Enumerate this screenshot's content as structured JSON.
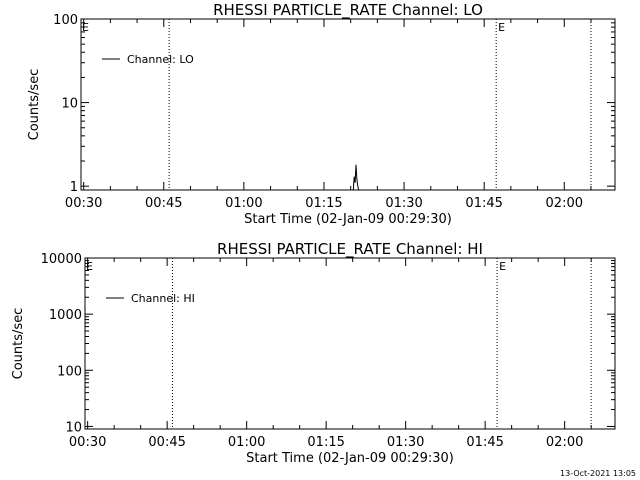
{
  "timestamp": "13-Oct-2021 13:05",
  "chart_data": [
    {
      "type": "line",
      "title": "RHESSI PARTICLE_RATE Channel: LO",
      "ylabel": "Counts/sec",
      "xlabel": "Start Time (02-Jan-09 00:29:30)",
      "yscale": "log",
      "ylim": [
        0.9,
        100
      ],
      "y_ticks": [
        1,
        10,
        100
      ],
      "xlim": [
        "00:29:30",
        "02:09:30"
      ],
      "x_ticks": [
        "00:30",
        "00:45",
        "01:00",
        "01:15",
        "01:30",
        "01:45",
        "02:00"
      ],
      "legend": {
        "position": "top-left",
        "entries": [
          "Channel: LO"
        ]
      },
      "series": [
        {
          "name": "Channel: LO",
          "x": [
            "01:20:30",
            "01:20:40",
            "01:20:50",
            "01:21:00",
            "01:21:10",
            "01:21:20",
            "01:21:30"
          ],
          "y": [
            0.9,
            1.3,
            1.1,
            1.8,
            1.2,
            1.0,
            0.9
          ]
        }
      ],
      "markers": [
        {
          "time": "00:46:00",
          "label": ""
        },
        {
          "time": "01:47:15",
          "label": "E"
        },
        {
          "time": "02:05:00",
          "label": ""
        }
      ],
      "corner_marker": "E"
    },
    {
      "type": "line",
      "title": "RHESSI PARTICLE_RATE Channel: HI",
      "ylabel": "Counts/sec",
      "xlabel": "Start Time (02-Jan-09 00:29:30)",
      "yscale": "log",
      "ylim": [
        9,
        10000
      ],
      "y_ticks": [
        10,
        100,
        1000,
        10000
      ],
      "xlim": [
        "00:29:30",
        "02:09:30"
      ],
      "x_ticks": [
        "00:30",
        "00:45",
        "01:00",
        "01:15",
        "01:30",
        "01:45",
        "02:00"
      ],
      "legend": {
        "position": "top-left",
        "entries": [
          "Channel: HI"
        ]
      },
      "series": [
        {
          "name": "Channel: HI",
          "x": [],
          "y": []
        }
      ],
      "markers": [
        {
          "time": "00:46:00",
          "label": ""
        },
        {
          "time": "01:47:15",
          "label": "E"
        },
        {
          "time": "02:05:00",
          "label": ""
        }
      ],
      "corner_marker": "E"
    }
  ]
}
